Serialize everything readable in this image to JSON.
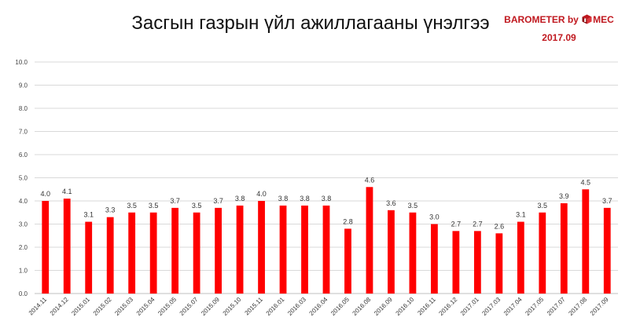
{
  "brand": {
    "name_prefix": "BAROMETER by",
    "name_suffix": "MEC",
    "period": "2017.09",
    "logo_icon": "mec-cube-logo-icon",
    "color": "#c0181f"
  },
  "chart_data": {
    "type": "bar",
    "title": "Засгын газрын үйл ажиллагааны үнэлгээ",
    "xlabel": "",
    "ylabel": "",
    "ylim": [
      0,
      10
    ],
    "yticks": [
      "0.0",
      "1.0",
      "2.0",
      "3.0",
      "4.0",
      "5.0",
      "6.0",
      "7.0",
      "8.0",
      "9.0",
      "10.0"
    ],
    "grid": true,
    "bar_color": "#ff0000",
    "categories": [
      "2014.11",
      "2014.12",
      "2015.01",
      "2015.02",
      "2015.03",
      "2015.04",
      "2015.05",
      "2015.07",
      "2015.09",
      "2015.10",
      "2015.11",
      "2016.01",
      "2016.03",
      "2016.04",
      "2016.05",
      "2016.08",
      "2016.09",
      "2016.10",
      "2016.11",
      "2016.12",
      "2017.01",
      "2017.03",
      "2017.04",
      "2017.05",
      "2017.07",
      "2017.08",
      "2017.09"
    ],
    "values": [
      4.0,
      4.1,
      3.1,
      3.3,
      3.5,
      3.5,
      3.7,
      3.5,
      3.7,
      3.8,
      4.0,
      3.8,
      3.8,
      3.8,
      2.8,
      4.6,
      3.6,
      3.5,
      3.0,
      2.7,
      2.7,
      2.6,
      3.1,
      3.5,
      3.9,
      4.5,
      3.7
    ],
    "data_labels": [
      "4.0",
      "4.1",
      "3.1",
      "3.3",
      "3.5",
      "3.5",
      "3.7",
      "3.5",
      "3.7",
      "3.8",
      "4.0",
      "3.8",
      "3.8",
      "3.8",
      "2.8",
      "4.6",
      "3.6",
      "3.5",
      "3.0",
      "2.7",
      "2.7",
      "2.6",
      "3.1",
      "3.5",
      "3.9",
      "4.5",
      "3.7"
    ]
  }
}
